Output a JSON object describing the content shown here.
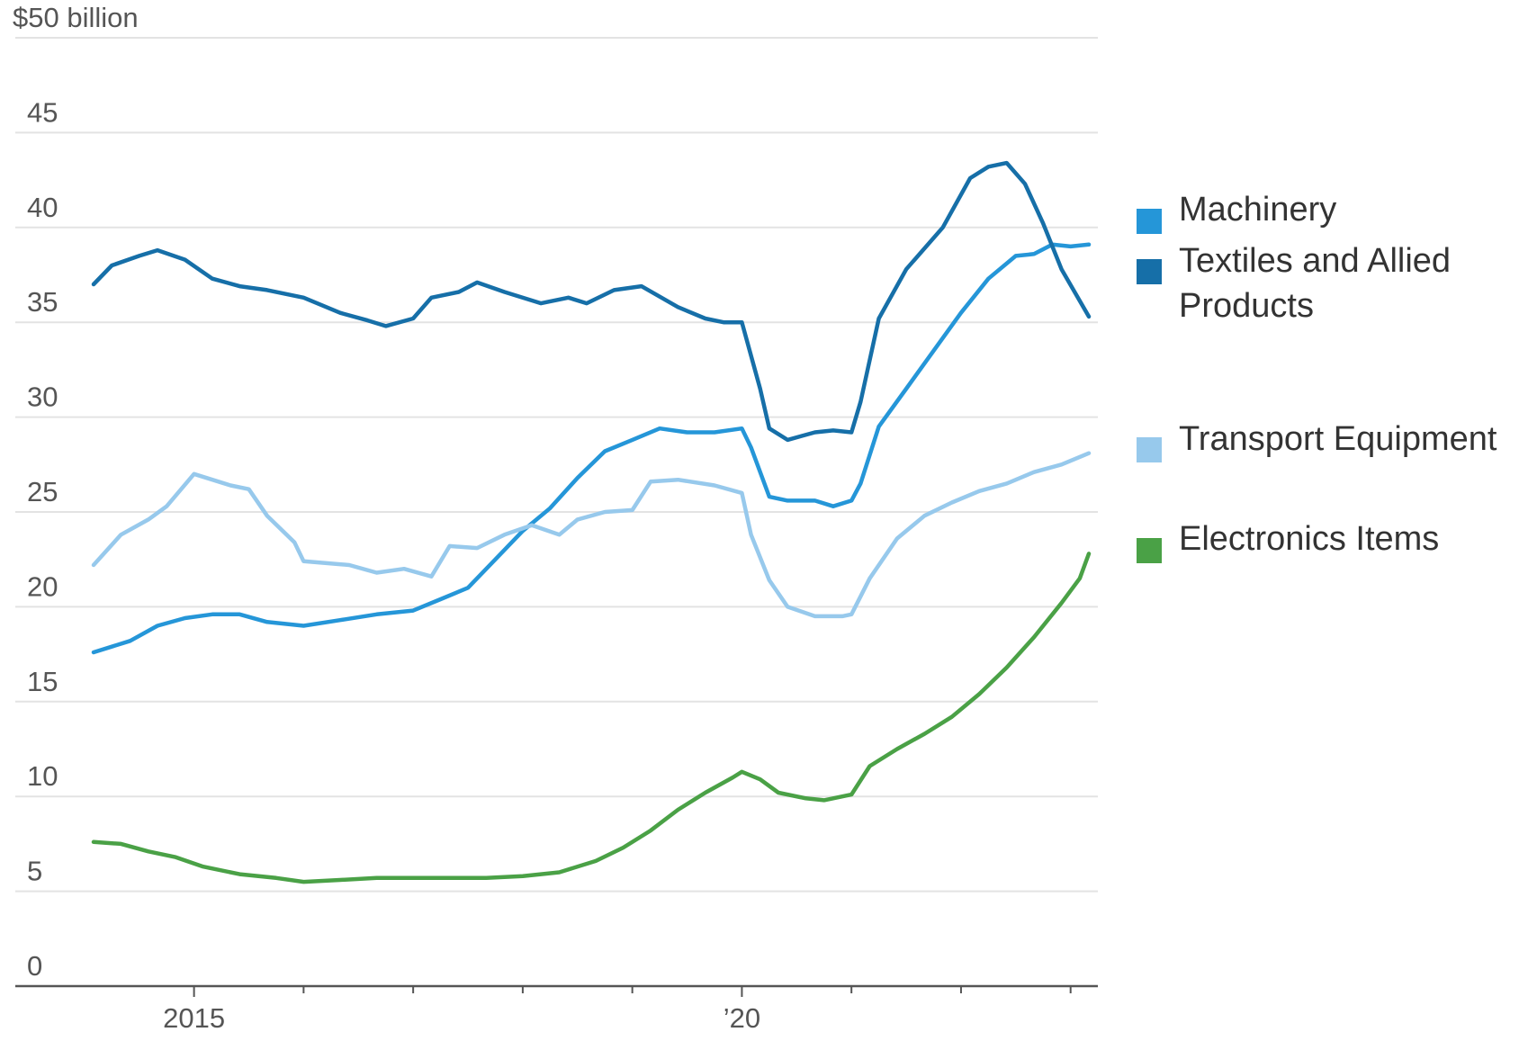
{
  "chart_data": {
    "type": "line",
    "title": "",
    "xlabel": "",
    "ylabel": "",
    "y_unit_label": "$50 billion",
    "ylim": [
      0,
      50
    ],
    "y_ticks": [
      0,
      5,
      10,
      15,
      20,
      25,
      30,
      35,
      40,
      45,
      50
    ],
    "y_tick_labels": [
      "0",
      "5",
      "10",
      "15",
      "20",
      "25",
      "30",
      "35",
      "40",
      "45",
      "$50 billion"
    ],
    "x_range": [
      "2014-02",
      "2023-03"
    ],
    "x_labeled_ticks": [
      {
        "date": "2015-01",
        "label": "2015"
      },
      {
        "date": "2020-01",
        "label": "’20"
      }
    ],
    "x_minor_ticks": [
      "2016-01",
      "2017-01",
      "2018-01",
      "2019-01",
      "2021-01",
      "2022-01",
      "2023-01"
    ],
    "grid": "horizontal",
    "legend_position": "right",
    "series": [
      {
        "name": "Machinery",
        "color": "#2596d8",
        "points": [
          [
            "2014-02",
            17.6
          ],
          [
            "2014-06",
            18.2
          ],
          [
            "2014-09",
            19.0
          ],
          [
            "2014-12",
            19.4
          ],
          [
            "2015-03",
            19.6
          ],
          [
            "2015-06",
            19.6
          ],
          [
            "2015-09",
            19.2
          ],
          [
            "2016-01",
            19.0
          ],
          [
            "2016-05",
            19.3
          ],
          [
            "2016-09",
            19.6
          ],
          [
            "2017-01",
            19.8
          ],
          [
            "2017-04",
            20.4
          ],
          [
            "2017-07",
            21.0
          ],
          [
            "2017-10",
            22.5
          ],
          [
            "2018-01",
            24.0
          ],
          [
            "2018-04",
            25.2
          ],
          [
            "2018-07",
            26.8
          ],
          [
            "2018-10",
            28.2
          ],
          [
            "2019-01",
            28.8
          ],
          [
            "2019-04",
            29.4
          ],
          [
            "2019-07",
            29.2
          ],
          [
            "2019-10",
            29.2
          ],
          [
            "2020-01",
            29.4
          ],
          [
            "2020-02",
            28.4
          ],
          [
            "2020-04",
            25.8
          ],
          [
            "2020-06",
            25.6
          ],
          [
            "2020-09",
            25.6
          ],
          [
            "2020-11",
            25.3
          ],
          [
            "2021-01",
            25.6
          ],
          [
            "2021-02",
            26.5
          ],
          [
            "2021-04",
            29.5
          ],
          [
            "2021-07",
            31.5
          ],
          [
            "2021-10",
            33.5
          ],
          [
            "2022-01",
            35.5
          ],
          [
            "2022-04",
            37.3
          ],
          [
            "2022-07",
            38.5
          ],
          [
            "2022-09",
            38.6
          ],
          [
            "2022-11",
            39.1
          ],
          [
            "2023-01",
            39.0
          ],
          [
            "2023-03",
            39.1
          ]
        ]
      },
      {
        "name": "Textiles and Allied Products",
        "color": "#166fa8",
        "points": [
          [
            "2014-02",
            37.0
          ],
          [
            "2014-04",
            38.0
          ],
          [
            "2014-07",
            38.5
          ],
          [
            "2014-09",
            38.8
          ],
          [
            "2014-12",
            38.3
          ],
          [
            "2015-03",
            37.3
          ],
          [
            "2015-06",
            36.9
          ],
          [
            "2015-09",
            36.7
          ],
          [
            "2016-01",
            36.3
          ],
          [
            "2016-05",
            35.5
          ],
          [
            "2016-08",
            35.1
          ],
          [
            "2016-10",
            34.8
          ],
          [
            "2017-01",
            35.2
          ],
          [
            "2017-03",
            36.3
          ],
          [
            "2017-06",
            36.6
          ],
          [
            "2017-08",
            37.1
          ],
          [
            "2017-11",
            36.6
          ],
          [
            "2018-03",
            36.0
          ],
          [
            "2018-06",
            36.3
          ],
          [
            "2018-08",
            36.0
          ],
          [
            "2018-11",
            36.7
          ],
          [
            "2019-02",
            36.9
          ],
          [
            "2019-06",
            35.8
          ],
          [
            "2019-09",
            35.2
          ],
          [
            "2019-11",
            35.0
          ],
          [
            "2020-01",
            35.0
          ],
          [
            "2020-03",
            31.5
          ],
          [
            "2020-04",
            29.4
          ],
          [
            "2020-06",
            28.8
          ],
          [
            "2020-09",
            29.2
          ],
          [
            "2020-11",
            29.3
          ],
          [
            "2021-01",
            29.2
          ],
          [
            "2021-02",
            30.8
          ],
          [
            "2021-04",
            35.2
          ],
          [
            "2021-07",
            37.8
          ],
          [
            "2021-11",
            40.0
          ],
          [
            "2022-02",
            42.6
          ],
          [
            "2022-04",
            43.2
          ],
          [
            "2022-06",
            43.4
          ],
          [
            "2022-08",
            42.3
          ],
          [
            "2022-10",
            40.2
          ],
          [
            "2022-12",
            37.8
          ],
          [
            "2023-03",
            35.3
          ]
        ]
      },
      {
        "name": "Transport Equipment",
        "color": "#97c9ec",
        "points": [
          [
            "2014-02",
            22.2
          ],
          [
            "2014-05",
            23.8
          ],
          [
            "2014-08",
            24.6
          ],
          [
            "2014-10",
            25.3
          ],
          [
            "2015-01",
            27.0
          ],
          [
            "2015-05",
            26.4
          ],
          [
            "2015-07",
            26.2
          ],
          [
            "2015-09",
            24.8
          ],
          [
            "2015-12",
            23.4
          ],
          [
            "2016-01",
            22.4
          ],
          [
            "2016-06",
            22.2
          ],
          [
            "2016-09",
            21.8
          ],
          [
            "2016-12",
            22.0
          ],
          [
            "2017-03",
            21.6
          ],
          [
            "2017-05",
            23.2
          ],
          [
            "2017-08",
            23.1
          ],
          [
            "2017-11",
            23.8
          ],
          [
            "2018-02",
            24.3
          ],
          [
            "2018-05",
            23.8
          ],
          [
            "2018-07",
            24.6
          ],
          [
            "2018-10",
            25.0
          ],
          [
            "2019-01",
            25.1
          ],
          [
            "2019-03",
            26.6
          ],
          [
            "2019-06",
            26.7
          ],
          [
            "2019-10",
            26.4
          ],
          [
            "2020-01",
            26.0
          ],
          [
            "2020-02",
            23.8
          ],
          [
            "2020-04",
            21.4
          ],
          [
            "2020-06",
            20.0
          ],
          [
            "2020-09",
            19.5
          ],
          [
            "2020-12",
            19.5
          ],
          [
            "2021-01",
            19.6
          ],
          [
            "2021-03",
            21.5
          ],
          [
            "2021-06",
            23.6
          ],
          [
            "2021-09",
            24.8
          ],
          [
            "2021-12",
            25.5
          ],
          [
            "2022-03",
            26.1
          ],
          [
            "2022-06",
            26.5
          ],
          [
            "2022-09",
            27.1
          ],
          [
            "2022-12",
            27.5
          ],
          [
            "2023-03",
            28.1
          ]
        ]
      },
      {
        "name": "Electronics Items",
        "color": "#4aa146",
        "points": [
          [
            "2014-02",
            7.6
          ],
          [
            "2014-05",
            7.5
          ],
          [
            "2014-08",
            7.1
          ],
          [
            "2014-11",
            6.8
          ],
          [
            "2015-02",
            6.3
          ],
          [
            "2015-06",
            5.9
          ],
          [
            "2015-10",
            5.7
          ],
          [
            "2016-01",
            5.5
          ],
          [
            "2016-05",
            5.6
          ],
          [
            "2016-09",
            5.7
          ],
          [
            "2017-01",
            5.7
          ],
          [
            "2017-05",
            5.7
          ],
          [
            "2017-09",
            5.7
          ],
          [
            "2018-01",
            5.8
          ],
          [
            "2018-05",
            6.0
          ],
          [
            "2018-09",
            6.6
          ],
          [
            "2018-12",
            7.3
          ],
          [
            "2019-03",
            8.2
          ],
          [
            "2019-06",
            9.3
          ],
          [
            "2019-09",
            10.2
          ],
          [
            "2019-12",
            11.0
          ],
          [
            "2020-01",
            11.3
          ],
          [
            "2020-03",
            10.9
          ],
          [
            "2020-05",
            10.2
          ],
          [
            "2020-08",
            9.9
          ],
          [
            "2020-10",
            9.8
          ],
          [
            "2020-12",
            10.0
          ],
          [
            "2021-01",
            10.1
          ],
          [
            "2021-03",
            11.6
          ],
          [
            "2021-06",
            12.5
          ],
          [
            "2021-09",
            13.3
          ],
          [
            "2021-12",
            14.2
          ],
          [
            "2022-03",
            15.4
          ],
          [
            "2022-06",
            16.8
          ],
          [
            "2022-09",
            18.4
          ],
          [
            "2022-12",
            20.2
          ],
          [
            "2023-02",
            21.5
          ],
          [
            "2023-03",
            22.8
          ]
        ]
      }
    ]
  }
}
